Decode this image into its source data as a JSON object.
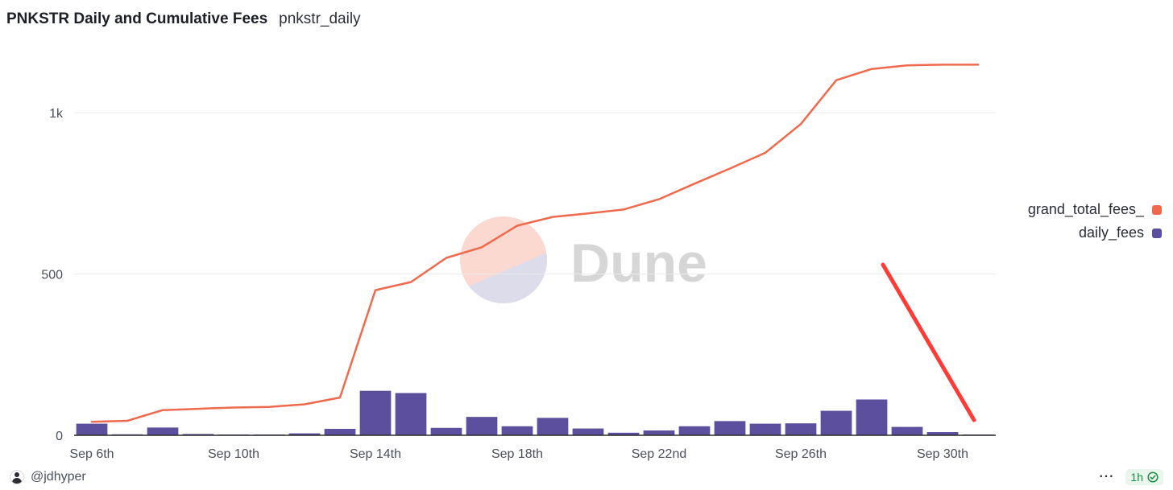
{
  "header": {
    "title": "PNKSTR Daily and Cumulative Fees",
    "subtitle": "pnkstr_daily"
  },
  "watermark": {
    "text": "Dune"
  },
  "legend": {
    "items": [
      {
        "label": "grand_total_fees_",
        "color": "#ef6a4c"
      },
      {
        "label": "daily_fees",
        "color": "#5b4f9e"
      }
    ]
  },
  "footer": {
    "author": "@jdhyper",
    "more_label": "···",
    "refresh_label": "1h",
    "check_icon": "check-circle-icon"
  },
  "colors": {
    "line": "#ef6a4c",
    "bar": "#5b4f9e",
    "annotation": "#ff3b36",
    "grid": "#ebebeb",
    "axis": "#2a2a2a"
  },
  "chart_data": {
    "type": "bar+line",
    "x": [
      "Sep 6th",
      "Sep 7th",
      "Sep 8th",
      "Sep 9th",
      "Sep 10th",
      "Sep 11th",
      "Sep 12th",
      "Sep 13th",
      "Sep 14th",
      "Sep 15th",
      "Sep 16th",
      "Sep 17th",
      "Sep 18th",
      "Sep 19th",
      "Sep 20th",
      "Sep 21st",
      "Sep 22nd",
      "Sep 23rd",
      "Sep 24th",
      "Sep 25th",
      "Sep 26th",
      "Sep 27th",
      "Sep 28th",
      "Sep 29th",
      "Sep 30th",
      "Oct 1st"
    ],
    "x_tick_labels": [
      "Sep 6th",
      "Sep 10th",
      "Sep 14th",
      "Sep 18th",
      "Sep 22nd",
      "Sep 26th",
      "Sep 30th"
    ],
    "x_tick_indices": [
      0,
      4,
      8,
      12,
      16,
      20,
      24
    ],
    "series": [
      {
        "name": "daily_fees",
        "type": "bar",
        "values": [
          36,
          3,
          24,
          4,
          2,
          2,
          6,
          20,
          138,
          131,
          23,
          57,
          28,
          54,
          21,
          8,
          15,
          28,
          44,
          36,
          37,
          76,
          111,
          26,
          10,
          2
        ]
      },
      {
        "name": "grand_total_fees_",
        "type": "line",
        "values": [
          42,
          45,
          78,
          82,
          86,
          88,
          96,
          117,
          450,
          475,
          550,
          583,
          650,
          677,
          688,
          700,
          732,
          780,
          827,
          876,
          965,
          1101,
          1136,
          1147,
          1149,
          1149
        ]
      }
    ],
    "y_ticks": [
      0,
      500,
      1000
    ],
    "y_tick_labels": [
      "0",
      "500",
      "1k"
    ],
    "ylim": [
      0,
      1200
    ],
    "grid": true,
    "legend_position": "right"
  }
}
